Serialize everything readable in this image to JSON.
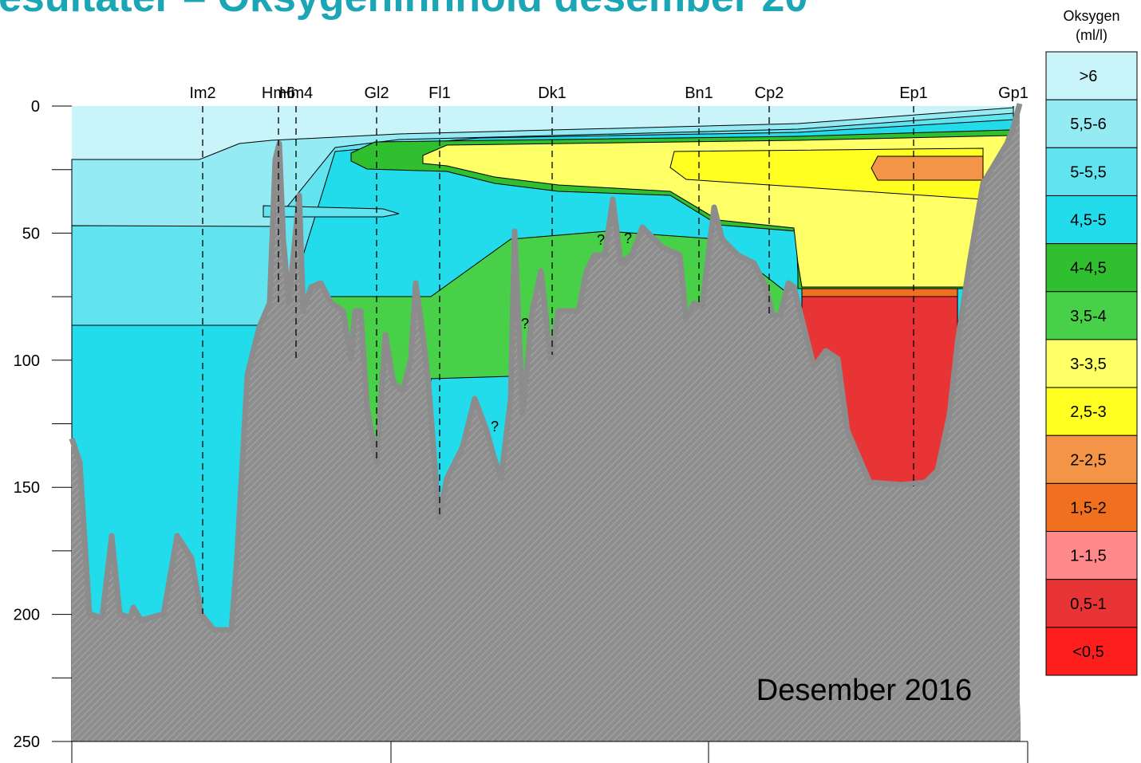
{
  "title": "esultater – Oksygeninnhold desember 20",
  "stations": [
    "Im2",
    "Hm6",
    "Hm4",
    "Gl2",
    "Fl1",
    "Dk1",
    "Bn1",
    "Cp2",
    "Ep1",
    "Gp1"
  ],
  "y_axis": {
    "lim": [
      0,
      250
    ],
    "ticks": [
      0,
      50,
      100,
      150,
      200,
      250
    ]
  },
  "legend": {
    "title": [
      "Oksygen",
      "(ml/l)"
    ],
    "items": [
      {
        "label": ">6",
        "color": "#c8f4fa"
      },
      {
        "label": "5,5-6",
        "color": "#94ebf4"
      },
      {
        "label": "5-5,5",
        "color": "#62e3f0"
      },
      {
        "label": "4,5-5",
        "color": "#22dcec"
      },
      {
        "label": "4-4,5",
        "color": "#2fbf2f"
      },
      {
        "label": "3,5-4",
        "color": "#49d049"
      },
      {
        "label": "3-3,5",
        "color": "#ffff66"
      },
      {
        "label": "2,5-3",
        "color": "#ffff22"
      },
      {
        "label": "2-2,5",
        "color": "#f39446"
      },
      {
        "label": "1,5-2",
        "color": "#f07020"
      },
      {
        "label": "1-1,5",
        "color": "#ff8888"
      },
      {
        "label": "0,5-1",
        "color": "#e83434"
      },
      {
        "label": "<0,5",
        "color": "#ff1e1e"
      }
    ]
  },
  "annotation": "Desember 2016",
  "markers": [
    "?",
    "?",
    "?",
    "?"
  ]
}
